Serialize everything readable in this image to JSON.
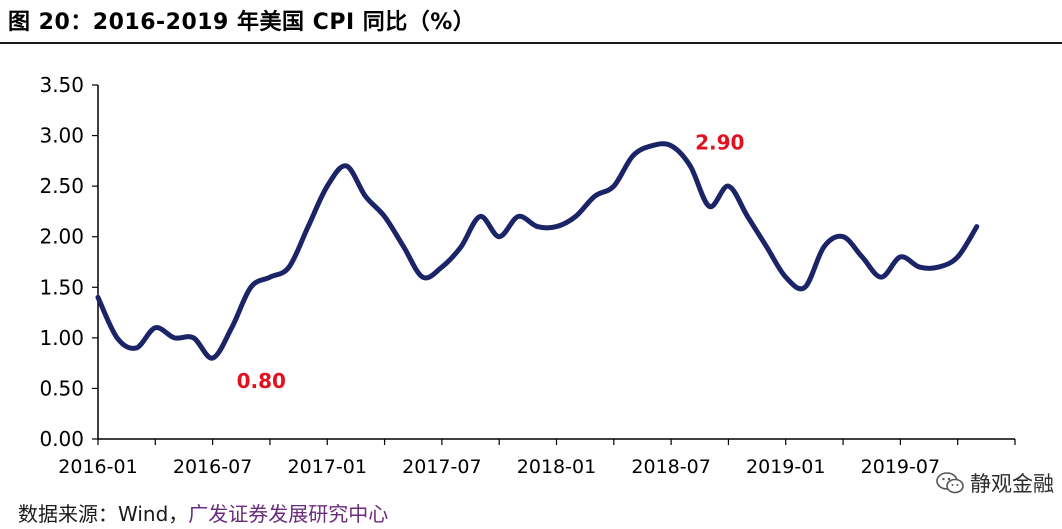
{
  "title": "图 20：2016-2019 年美国 CPI 同比（%）",
  "source": {
    "label": "数据来源：",
    "value": "Wind，",
    "org": "广发证券发展研究中心"
  },
  "watermark": "静观金融",
  "colors": {
    "line": "#1b2466",
    "annotation": "#e3101e",
    "axis": "#000000"
  },
  "chart_data": {
    "type": "line",
    "y_ticks": [
      "0.00",
      "0.50",
      "1.00",
      "1.50",
      "2.00",
      "2.50",
      "3.00",
      "3.50"
    ],
    "ylim": [
      0,
      3.5
    ],
    "x_tick_labels": [
      "2016-01",
      "2016-07",
      "2017-01",
      "2017-07",
      "2018-01",
      "2018-07",
      "2019-01",
      "2019-07"
    ],
    "grid": false,
    "series": [
      {
        "x": [
          "2016-01",
          "2016-02",
          "2016-03",
          "2016-04",
          "2016-05",
          "2016-06",
          "2016-07",
          "2016-08",
          "2016-09",
          "2016-10",
          "2016-11",
          "2016-12",
          "2017-01",
          "2017-02",
          "2017-03",
          "2017-04",
          "2017-05",
          "2017-06",
          "2017-07",
          "2017-08",
          "2017-09",
          "2017-10",
          "2017-11",
          "2017-12",
          "2018-01",
          "2018-02",
          "2018-03",
          "2018-04",
          "2018-05",
          "2018-06",
          "2018-07",
          "2018-08",
          "2018-09",
          "2018-10",
          "2018-11",
          "2018-12",
          "2019-01",
          "2019-02",
          "2019-03",
          "2019-04",
          "2019-05",
          "2019-06",
          "2019-07",
          "2019-08",
          "2019-09",
          "2019-10",
          "2019-11"
        ],
        "values": [
          1.4,
          1.0,
          0.9,
          1.1,
          1.0,
          1.0,
          0.8,
          1.1,
          1.5,
          1.6,
          1.7,
          2.1,
          2.5,
          2.7,
          2.4,
          2.2,
          1.9,
          1.6,
          1.7,
          1.9,
          2.2,
          2.0,
          2.2,
          2.1,
          2.1,
          2.2,
          2.4,
          2.5,
          2.8,
          2.9,
          2.9,
          2.7,
          2.3,
          2.5,
          2.2,
          1.9,
          1.6,
          1.5,
          1.9,
          2.0,
          1.8,
          1.6,
          1.8,
          1.7,
          1.7,
          1.8,
          2.1
        ]
      }
    ],
    "annotations": [
      {
        "text": "0.80",
        "x": "2016-07",
        "y": 0.8,
        "anchor": "below-right"
      },
      {
        "text": "2.90",
        "x": "2018-07",
        "y": 2.9,
        "anchor": "right"
      }
    ]
  }
}
